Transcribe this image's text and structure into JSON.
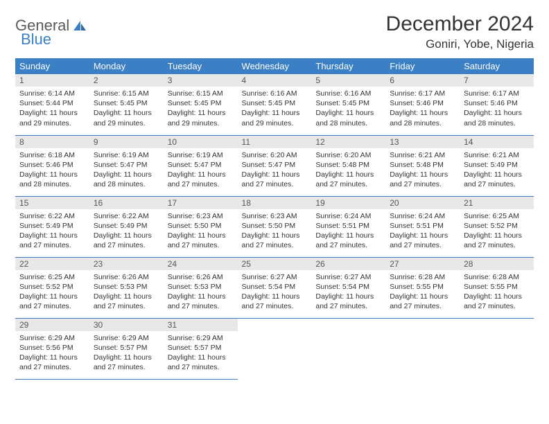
{
  "logo": {
    "word1": "General",
    "word2": "Blue"
  },
  "title": "December 2024",
  "location": "Goniri, Yobe, Nigeria",
  "colors": {
    "header_bg": "#3b7fc4",
    "header_text": "#ffffff",
    "daynum_bg": "#e8e8e8",
    "row_border": "#3b7fc4",
    "logo_gray": "#5a5a5a",
    "logo_blue": "#3b7fc4"
  },
  "weekdays": [
    "Sunday",
    "Monday",
    "Tuesday",
    "Wednesday",
    "Thursday",
    "Friday",
    "Saturday"
  ],
  "days": [
    {
      "n": "1",
      "sr": "6:14 AM",
      "ss": "5:44 PM",
      "dl": "11 hours and 29 minutes."
    },
    {
      "n": "2",
      "sr": "6:15 AM",
      "ss": "5:45 PM",
      "dl": "11 hours and 29 minutes."
    },
    {
      "n": "3",
      "sr": "6:15 AM",
      "ss": "5:45 PM",
      "dl": "11 hours and 29 minutes."
    },
    {
      "n": "4",
      "sr": "6:16 AM",
      "ss": "5:45 PM",
      "dl": "11 hours and 29 minutes."
    },
    {
      "n": "5",
      "sr": "6:16 AM",
      "ss": "5:45 PM",
      "dl": "11 hours and 28 minutes."
    },
    {
      "n": "6",
      "sr": "6:17 AM",
      "ss": "5:46 PM",
      "dl": "11 hours and 28 minutes."
    },
    {
      "n": "7",
      "sr": "6:17 AM",
      "ss": "5:46 PM",
      "dl": "11 hours and 28 minutes."
    },
    {
      "n": "8",
      "sr": "6:18 AM",
      "ss": "5:46 PM",
      "dl": "11 hours and 28 minutes."
    },
    {
      "n": "9",
      "sr": "6:19 AM",
      "ss": "5:47 PM",
      "dl": "11 hours and 28 minutes."
    },
    {
      "n": "10",
      "sr": "6:19 AM",
      "ss": "5:47 PM",
      "dl": "11 hours and 27 minutes."
    },
    {
      "n": "11",
      "sr": "6:20 AM",
      "ss": "5:47 PM",
      "dl": "11 hours and 27 minutes."
    },
    {
      "n": "12",
      "sr": "6:20 AM",
      "ss": "5:48 PM",
      "dl": "11 hours and 27 minutes."
    },
    {
      "n": "13",
      "sr": "6:21 AM",
      "ss": "5:48 PM",
      "dl": "11 hours and 27 minutes."
    },
    {
      "n": "14",
      "sr": "6:21 AM",
      "ss": "5:49 PM",
      "dl": "11 hours and 27 minutes."
    },
    {
      "n": "15",
      "sr": "6:22 AM",
      "ss": "5:49 PM",
      "dl": "11 hours and 27 minutes."
    },
    {
      "n": "16",
      "sr": "6:22 AM",
      "ss": "5:49 PM",
      "dl": "11 hours and 27 minutes."
    },
    {
      "n": "17",
      "sr": "6:23 AM",
      "ss": "5:50 PM",
      "dl": "11 hours and 27 minutes."
    },
    {
      "n": "18",
      "sr": "6:23 AM",
      "ss": "5:50 PM",
      "dl": "11 hours and 27 minutes."
    },
    {
      "n": "19",
      "sr": "6:24 AM",
      "ss": "5:51 PM",
      "dl": "11 hours and 27 minutes."
    },
    {
      "n": "20",
      "sr": "6:24 AM",
      "ss": "5:51 PM",
      "dl": "11 hours and 27 minutes."
    },
    {
      "n": "21",
      "sr": "6:25 AM",
      "ss": "5:52 PM",
      "dl": "11 hours and 27 minutes."
    },
    {
      "n": "22",
      "sr": "6:25 AM",
      "ss": "5:52 PM",
      "dl": "11 hours and 27 minutes."
    },
    {
      "n": "23",
      "sr": "6:26 AM",
      "ss": "5:53 PM",
      "dl": "11 hours and 27 minutes."
    },
    {
      "n": "24",
      "sr": "6:26 AM",
      "ss": "5:53 PM",
      "dl": "11 hours and 27 minutes."
    },
    {
      "n": "25",
      "sr": "6:27 AM",
      "ss": "5:54 PM",
      "dl": "11 hours and 27 minutes."
    },
    {
      "n": "26",
      "sr": "6:27 AM",
      "ss": "5:54 PM",
      "dl": "11 hours and 27 minutes."
    },
    {
      "n": "27",
      "sr": "6:28 AM",
      "ss": "5:55 PM",
      "dl": "11 hours and 27 minutes."
    },
    {
      "n": "28",
      "sr": "6:28 AM",
      "ss": "5:55 PM",
      "dl": "11 hours and 27 minutes."
    },
    {
      "n": "29",
      "sr": "6:29 AM",
      "ss": "5:56 PM",
      "dl": "11 hours and 27 minutes."
    },
    {
      "n": "30",
      "sr": "6:29 AM",
      "ss": "5:57 PM",
      "dl": "11 hours and 27 minutes."
    },
    {
      "n": "31",
      "sr": "6:29 AM",
      "ss": "5:57 PM",
      "dl": "11 hours and 27 minutes."
    }
  ],
  "labels": {
    "sunrise": "Sunrise:",
    "sunset": "Sunset:",
    "daylight": "Daylight:"
  }
}
